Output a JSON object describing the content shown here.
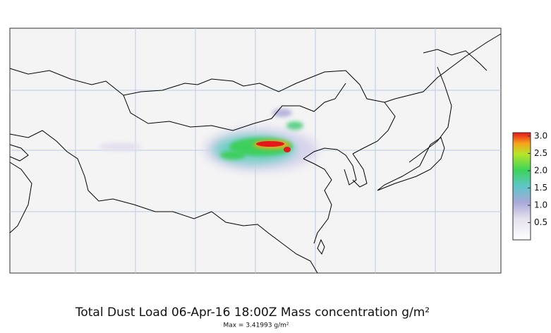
{
  "map": {
    "title": "Total Dust Load 06-Apr-16 18:00Z Mass concentration g/m²",
    "subtitle": "Max = 3.41993 g/m²",
    "colorbar": {
      "lim": [
        0,
        3.1
      ],
      "ticks": [
        0.5,
        {
          "value": 1,
          "label": "1.0"
        },
        1.5,
        {
          "value": 2,
          "label": "2.0"
        },
        2.5,
        {
          "value": 3,
          "label": "3.0"
        }
      ]
    }
  }
}
